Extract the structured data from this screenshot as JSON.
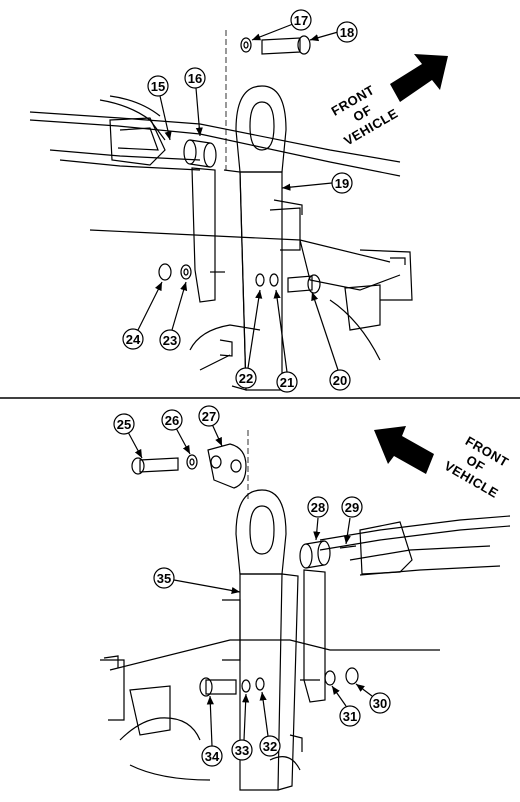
{
  "top_view": {
    "front_label": [
      "FRONT",
      "OF",
      "VEHICLE"
    ],
    "callouts": [
      "15",
      "16",
      "17",
      "18",
      "19",
      "20",
      "21",
      "22",
      "23",
      "24"
    ]
  },
  "bottom_view": {
    "front_label": [
      "FRONT",
      "OF",
      "VEHICLE"
    ],
    "callouts": [
      "25",
      "26",
      "27",
      "28",
      "29",
      "30",
      "31",
      "32",
      "33",
      "34",
      "35"
    ]
  }
}
